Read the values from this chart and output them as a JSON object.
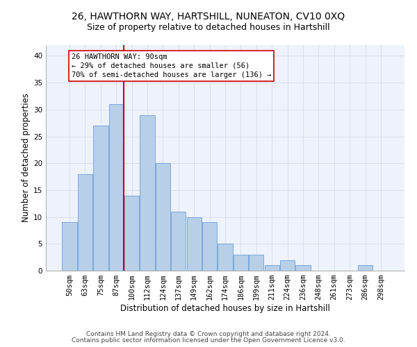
{
  "title1": "26, HAWTHORN WAY, HARTSHILL, NUNEATON, CV10 0XQ",
  "title2": "Size of property relative to detached houses in Hartshill",
  "xlabel": "Distribution of detached houses by size in Hartshill",
  "ylabel": "Number of detached properties",
  "categories": [
    "50sqm",
    "63sqm",
    "75sqm",
    "87sqm",
    "100sqm",
    "112sqm",
    "124sqm",
    "137sqm",
    "149sqm",
    "162sqm",
    "174sqm",
    "186sqm",
    "199sqm",
    "211sqm",
    "224sqm",
    "236sqm",
    "248sqm",
    "261sqm",
    "273sqm",
    "286sqm",
    "298sqm"
  ],
  "values": [
    9,
    18,
    27,
    31,
    14,
    29,
    20,
    11,
    10,
    9,
    5,
    3,
    3,
    1,
    2,
    1,
    0,
    0,
    0,
    1,
    0
  ],
  "bar_color": "#b8cfe8",
  "bar_edge_color": "#6a9fd8",
  "vline_x": 3.5,
  "vline_color": "#cc0000",
  "annotation_line1": "26 HAWTHORN WAY: 90sqm",
  "annotation_line2": "← 29% of detached houses are smaller (56)",
  "annotation_line3": "70% of semi-detached houses are larger (136) →",
  "annotation_box_color": "#ffffff",
  "annotation_box_edge": "#cc0000",
  "ylim": [
    0,
    42
  ],
  "yticks": [
    0,
    5,
    10,
    15,
    20,
    25,
    30,
    35,
    40
  ],
  "bg_color": "#eef2fa",
  "footer1": "Contains HM Land Registry data © Crown copyright and database right 2024.",
  "footer2": "Contains public sector information licensed under the Open Government Licence v3.0.",
  "title1_fontsize": 10,
  "title2_fontsize": 9,
  "xlabel_fontsize": 8.5,
  "ylabel_fontsize": 8.5,
  "tick_fontsize": 7.5,
  "annot_fontsize": 7.5,
  "footer_fontsize": 6.5
}
